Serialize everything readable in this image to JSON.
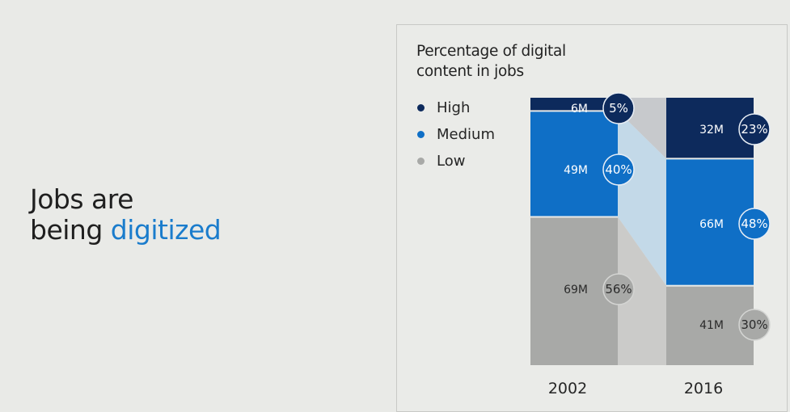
{
  "slide": {
    "headline_line1": "Jobs are",
    "headline_line2_plain": "being ",
    "headline_line2_accent": "digitized"
  },
  "chart_data": {
    "type": "bar",
    "subtype": "stacked-100-percent-with-connectors",
    "title_line1": "Percentage of digital",
    "title_line2": "content in jobs",
    "categories": [
      "2002",
      "2016"
    ],
    "legend_position": "top-left",
    "series": [
      {
        "name": "High",
        "color": "#0d2a5c",
        "values_pct": [
          5,
          23
        ],
        "values_count": [
          "6M",
          "32M"
        ],
        "pct_labels": [
          "5%",
          "23%"
        ]
      },
      {
        "name": "Medium",
        "color": "#0f6fc6",
        "values_pct": [
          40,
          48
        ],
        "values_count": [
          "49M",
          "66M"
        ],
        "pct_labels": [
          "40%",
          "48%"
        ]
      },
      {
        "name": "Low",
        "color": "#a8a9a7",
        "values_pct": [
          56,
          30
        ],
        "values_count": [
          "69M",
          "41M"
        ],
        "pct_labels": [
          "56%",
          "30%"
        ]
      }
    ],
    "connector_colors": {
      "High": "#c7c9cc",
      "Medium": "#c3d9e8",
      "Low": "#cbcbc9"
    }
  }
}
